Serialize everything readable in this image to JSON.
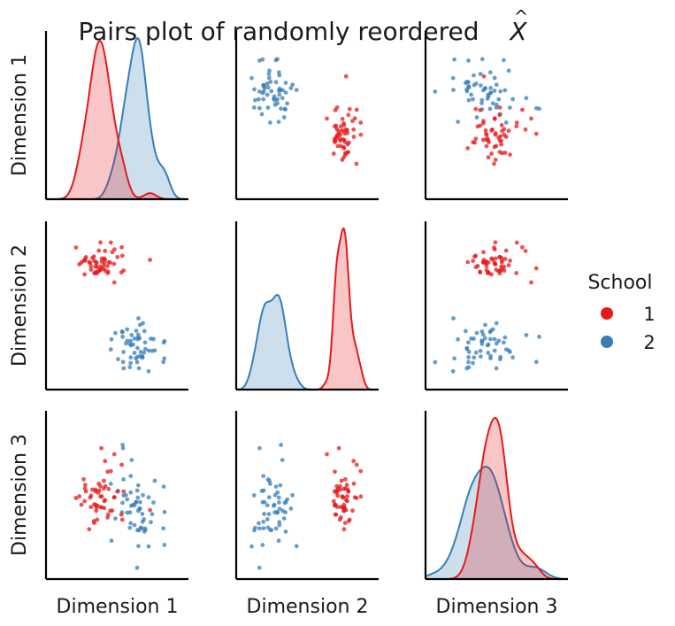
{
  "chart_data": {
    "type": "scatter",
    "title_main": "Pairs plot of randomly reordered ",
    "title_symbol": "X",
    "title_accent": "^",
    "variables": [
      "Dimension 1",
      "Dimension 2",
      "Dimension 3"
    ],
    "legend": {
      "title": "School",
      "placement": "right",
      "entries": [
        {
          "label": "1",
          "color": "#e41a1c"
        },
        {
          "label": "2",
          "color": "#377eb8"
        }
      ]
    },
    "grid": false,
    "tick_labels": false,
    "groups": [
      {
        "name": "1",
        "color": "#e41a1c",
        "mean": [
          0.38,
          0.75,
          0.48
        ],
        "sd": [
          0.09,
          0.055,
          0.09
        ],
        "n": 55
      },
      {
        "name": "2",
        "color": "#377eb8",
        "mean": [
          0.63,
          0.25,
          0.45
        ],
        "sd": [
          0.11,
          0.075,
          0.17
        ],
        "n": 55
      }
    ],
    "axis_range": [
      0,
      1
    ]
  }
}
